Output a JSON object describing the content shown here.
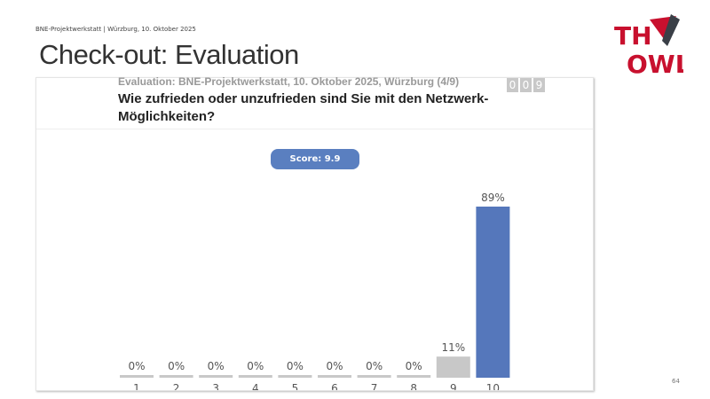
{
  "header": {
    "event": "BNE-Projektwerkstatt | Würzburg, 10. Oktober 2025",
    "title": "Check-out: Evaluation",
    "logo_text": "TH OWL",
    "page_number": "64"
  },
  "card": {
    "subtitle": "Evaluation: BNE-Projektwerkstatt, 10. Oktober 2025, Würzburg (4/9)",
    "question": "Wie zufrieden oder unzufrieden sind Sie mit den Netzwerk-Möglichkeiten?",
    "counter": [
      "0",
      "0",
      "9"
    ],
    "score": "Score: 9.9"
  },
  "colors": {
    "highlight": "#5577bb",
    "other": "#c8c8c8",
    "brand": "#c8102e"
  },
  "chart_data": {
    "type": "bar",
    "categories": [
      "1",
      "2",
      "3",
      "4",
      "5",
      "6",
      "7",
      "8",
      "9",
      "10"
    ],
    "values": [
      0,
      0,
      0,
      0,
      0,
      0,
      0,
      0,
      11,
      89
    ],
    "labels": [
      "0%",
      "0%",
      "0%",
      "0%",
      "0%",
      "0%",
      "0%",
      "0%",
      "11%",
      "89%"
    ],
    "ylim": [
      0,
      89
    ],
    "grid": false,
    "highlight_index": 9
  }
}
